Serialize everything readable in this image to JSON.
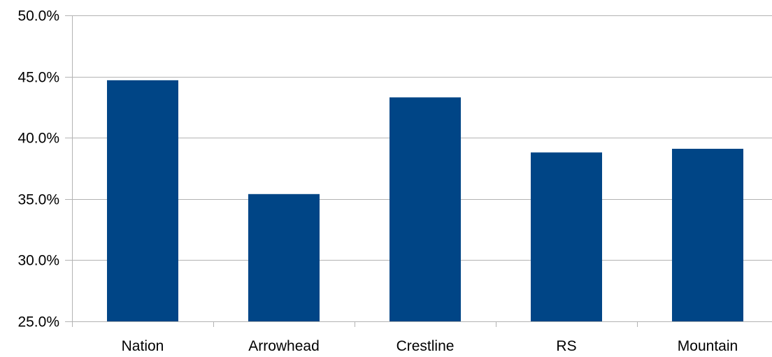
{
  "chart_data": {
    "type": "bar",
    "title": "",
    "xlabel": "",
    "ylabel": "",
    "categories": [
      "Nation",
      "Arrowhead",
      "Crestline",
      "RS",
      "Mountain"
    ],
    "values": [
      44.7,
      35.4,
      43.3,
      38.8,
      39.1
    ],
    "ylim": [
      25.0,
      50.0
    ],
    "yticks": [
      25.0,
      30.0,
      35.0,
      40.0,
      45.0,
      50.0
    ],
    "ytick_labels": [
      "25.0%",
      "30.0%",
      "35.0%",
      "40.0%",
      "45.0%",
      "50.0%"
    ],
    "grid": "horizontal",
    "legend": "none",
    "colors": {
      "bar": "#004586",
      "grid": "#b3b3b3",
      "axis": "#b3b3b3"
    }
  }
}
